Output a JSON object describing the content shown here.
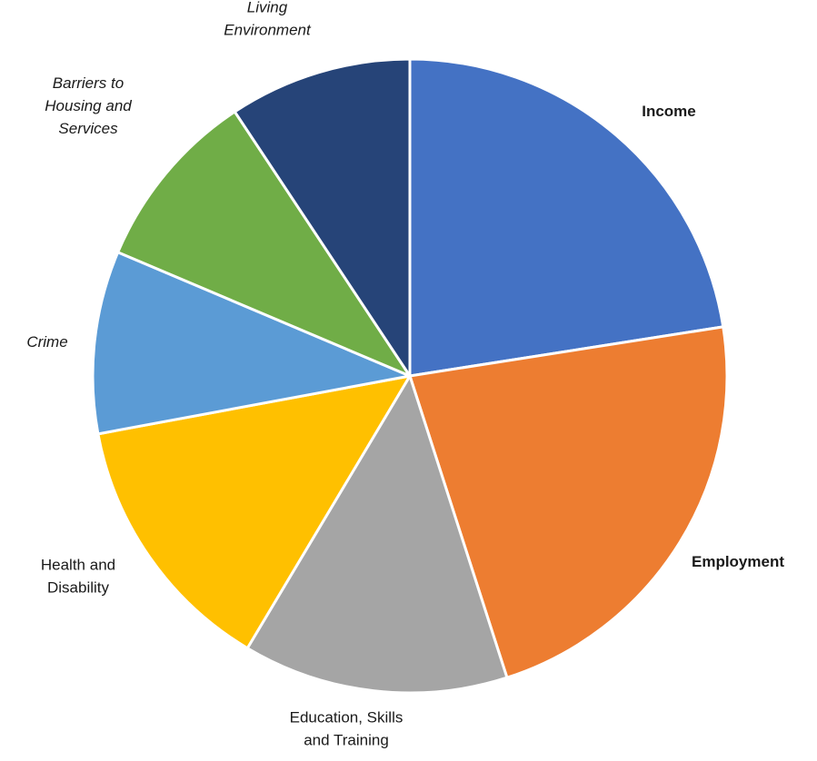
{
  "chart_data": {
    "type": "pie",
    "start": "top",
    "direction": "clockwise",
    "slices": [
      {
        "label_lines": [
          "Income"
        ],
        "value": 22.5,
        "color": "#4472C4",
        "label_style": "bold"
      },
      {
        "label_lines": [
          "Employment"
        ],
        "value": 22.5,
        "color": "#ED7D31",
        "label_style": "bold"
      },
      {
        "label_lines": [
          "Education, Skills",
          "and Training"
        ],
        "value": 13.5,
        "color": "#A5A5A5",
        "label_style": "normal"
      },
      {
        "label_lines": [
          "Health and",
          "Disability"
        ],
        "value": 13.5,
        "color": "#FFC000",
        "label_style": "normal"
      },
      {
        "label_lines": [
          "Crime"
        ],
        "value": 9.3,
        "color": "#5B9BD5",
        "label_style": "italic"
      },
      {
        "label_lines": [
          "Barriers to",
          "Housing and",
          "Services"
        ],
        "value": 9.3,
        "color": "#70AD47",
        "label_style": "italic"
      },
      {
        "label_lines": [
          "Living",
          "Environment"
        ],
        "value": 9.3,
        "color": "#264478",
        "label_style": "italic"
      }
    ],
    "legend": "none",
    "data_labels": "category names"
  }
}
